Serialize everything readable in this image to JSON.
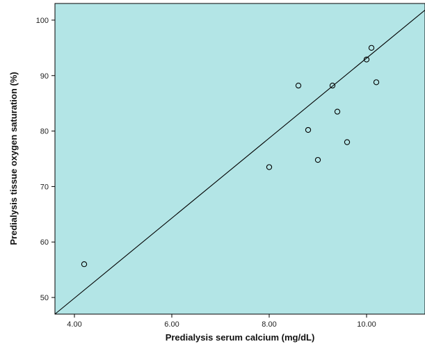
{
  "chart_data": {
    "type": "scatter",
    "xlabel": "Predialysis serum calcium (mg/dL)",
    "ylabel": "Predialysis tissue oxygen saturation (%)",
    "xlim": [
      3.6,
      11.2
    ],
    "ylim": [
      47,
      103
    ],
    "x_ticks": [
      4.0,
      6.0,
      8.0,
      10.0
    ],
    "x_tick_labels": [
      "4.00",
      "6.00",
      "8.00",
      "10.00"
    ],
    "y_ticks": [
      50,
      60,
      70,
      80,
      90,
      100
    ],
    "y_tick_labels": [
      "50",
      "60",
      "70",
      "80",
      "90",
      "100"
    ],
    "points": [
      {
        "x": 4.2,
        "y": 56.0
      },
      {
        "x": 8.0,
        "y": 73.5
      },
      {
        "x": 8.6,
        "y": 88.2
      },
      {
        "x": 8.8,
        "y": 80.2
      },
      {
        "x": 9.0,
        "y": 74.8
      },
      {
        "x": 9.3,
        "y": 88.2
      },
      {
        "x": 9.4,
        "y": 83.5
      },
      {
        "x": 9.6,
        "y": 78.0
      },
      {
        "x": 10.0,
        "y": 92.9
      },
      {
        "x": 10.1,
        "y": 95.0
      },
      {
        "x": 10.2,
        "y": 88.8
      }
    ],
    "fit_line": {
      "x1": 3.6,
      "y1": 47.0,
      "x2": 11.2,
      "y2": 101.8
    },
    "grid": false,
    "colors": {
      "plot_background": "#b3e5e6",
      "marker": "#000000",
      "line": "#000000"
    }
  }
}
